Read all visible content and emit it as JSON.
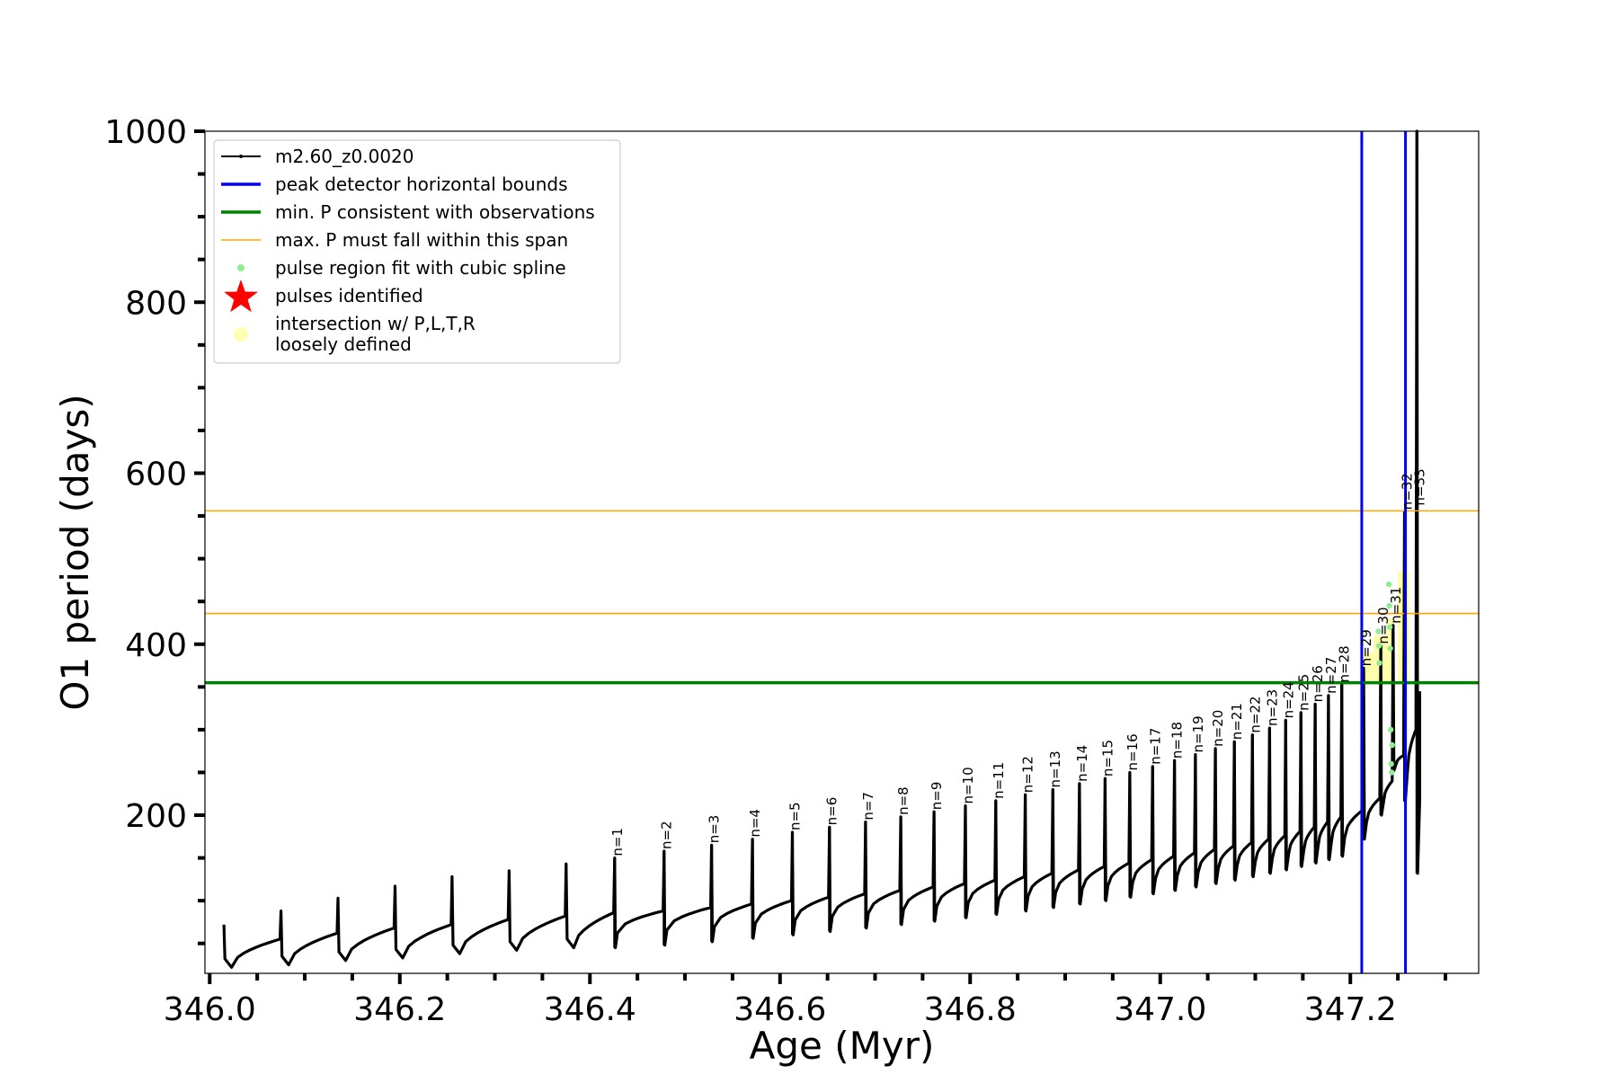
{
  "chart_data": {
    "type": "line",
    "xlabel": "Age (Myr)",
    "ylabel": "O1 period (days)",
    "xlim": [
      345.995,
      347.335
    ],
    "ylim": [
      15,
      1000
    ],
    "xticks": [
      346.0,
      346.2,
      346.4,
      346.6,
      346.8,
      347.0,
      347.2
    ],
    "xtick_labels": [
      "346.0",
      "346.2",
      "346.4",
      "346.6",
      "346.8",
      "347.0",
      "347.2"
    ],
    "yticks": [
      200,
      400,
      600,
      800,
      1000
    ],
    "ytick_labels": [
      "200",
      "400",
      "600",
      "800",
      "1000"
    ],
    "grid": false,
    "legend_position": "top-left",
    "legend": [
      {
        "label": "m2.60_z0.0020",
        "marker": "line-dot",
        "color": "#000000"
      },
      {
        "label": "peak detector horizontal bounds",
        "marker": "line",
        "color": "#0000ff"
      },
      {
        "label": "min. P consistent with observations",
        "marker": "line",
        "color": "#008000"
      },
      {
        "label": "max. P must fall within this span",
        "marker": "thin-line",
        "color": "#ffa500"
      },
      {
        "label": "pulse region fit with cubic spline",
        "marker": "dot",
        "color": "#90ee90"
      },
      {
        "label": "pulses identified",
        "marker": "star",
        "color": "#ff0000"
      },
      {
        "label": "intersection w/ P,L,T,R\nloosely defined",
        "marker": "circle",
        "color": "#ffffb0"
      }
    ],
    "reference_lines": {
      "vertical_blue": [
        347.212,
        347.258
      ],
      "horizontal_green": [
        355
      ],
      "horizontal_orange": [
        556,
        436
      ]
    },
    "series": [
      {
        "name": "m2.60_z0.0020",
        "color": "#000000",
        "pre_pulse_minima": [
          {
            "x": 346.015,
            "trough": 22,
            "spike": 72,
            "plateau": 55
          },
          {
            "x": 346.075,
            "trough": 25,
            "spike": 88,
            "plateau": 62
          },
          {
            "x": 346.135,
            "trough": 30,
            "spike": 103,
            "plateau": 68
          },
          {
            "x": 346.195,
            "trough": 33,
            "spike": 117,
            "plateau": 72
          },
          {
            "x": 346.255,
            "trough": 38,
            "spike": 128,
            "plateau": 78
          },
          {
            "x": 346.315,
            "trough": 42,
            "spike": 135,
            "plateau": 82
          },
          {
            "x": 346.375,
            "trough": 45,
            "spike": 143,
            "plateau": 86
          }
        ],
        "pulses": [
          {
            "n": "n=1",
            "x": 346.426,
            "peak": 150,
            "trough": 45,
            "base": 88
          },
          {
            "n": "n=2",
            "x": 346.478,
            "peak": 158,
            "trough": 48,
            "base": 92
          },
          {
            "n": "n=3",
            "x": 346.528,
            "peak": 165,
            "trough": 52,
            "base": 96
          },
          {
            "n": "n=4",
            "x": 346.571,
            "peak": 172,
            "trough": 56,
            "base": 100
          },
          {
            "n": "n=5",
            "x": 346.613,
            "peak": 180,
            "trough": 60,
            "base": 104
          },
          {
            "n": "n=6",
            "x": 346.652,
            "peak": 186,
            "trough": 64,
            "base": 108
          },
          {
            "n": "n=7",
            "x": 346.69,
            "peak": 192,
            "trough": 68,
            "base": 112
          },
          {
            "n": "n=8",
            "x": 346.727,
            "peak": 198,
            "trough": 72,
            "base": 116
          },
          {
            "n": "n=9",
            "x": 346.762,
            "peak": 204,
            "trough": 76,
            "base": 120
          },
          {
            "n": "n=10",
            "x": 346.795,
            "peak": 211,
            "trough": 80,
            "base": 124
          },
          {
            "n": "n=11",
            "x": 346.827,
            "peak": 217,
            "trough": 84,
            "base": 128
          },
          {
            "n": "n=12",
            "x": 346.858,
            "peak": 224,
            "trough": 88,
            "base": 132
          },
          {
            "n": "n=13",
            "x": 346.887,
            "peak": 230,
            "trough": 92,
            "base": 136
          },
          {
            "n": "n=14",
            "x": 346.915,
            "peak": 237,
            "trough": 96,
            "base": 140
          },
          {
            "n": "n=15",
            "x": 346.942,
            "peak": 243,
            "trough": 100,
            "base": 144
          },
          {
            "n": "n=16",
            "x": 346.968,
            "peak": 250,
            "trough": 104,
            "base": 148
          },
          {
            "n": "n=17",
            "x": 346.992,
            "peak": 257,
            "trough": 108,
            "base": 152
          },
          {
            "n": "n=18",
            "x": 347.015,
            "peak": 264,
            "trough": 112,
            "base": 156
          },
          {
            "n": "n=19",
            "x": 347.037,
            "peak": 271,
            "trough": 116,
            "base": 160
          },
          {
            "n": "n=20",
            "x": 347.058,
            "peak": 278,
            "trough": 120,
            "base": 164
          },
          {
            "n": "n=21",
            "x": 347.078,
            "peak": 286,
            "trough": 124,
            "base": 168
          },
          {
            "n": "n=22",
            "x": 347.097,
            "peak": 294,
            "trough": 128,
            "base": 172
          },
          {
            "n": "n=23",
            "x": 347.115,
            "peak": 302,
            "trough": 132,
            "base": 176
          },
          {
            "n": "n=24",
            "x": 347.132,
            "peak": 311,
            "trough": 136,
            "base": 181
          },
          {
            "n": "n=25",
            "x": 347.148,
            "peak": 320,
            "trough": 140,
            "base": 186
          },
          {
            "n": "n=26",
            "x": 347.163,
            "peak": 330,
            "trough": 144,
            "base": 192
          },
          {
            "n": "n=27",
            "x": 347.177,
            "peak": 340,
            "trough": 148,
            "base": 198
          },
          {
            "n": "n=28",
            "x": 347.191,
            "peak": 353,
            "trough": 152,
            "base": 206
          },
          {
            "n": "n=29",
            "x": 347.214,
            "peak": 372,
            "trough": 172,
            "base": 220
          },
          {
            "n": "n=30",
            "x": 347.232,
            "peak": 398,
            "trough": 200,
            "base": 240
          },
          {
            "n": "n=31",
            "x": 347.245,
            "peak": 422,
            "trough": 252,
            "base": 270
          },
          {
            "n": "n=32",
            "x": 347.257,
            "peak": 555,
            "trough": 216,
            "base": 300
          },
          {
            "n": "n=33",
            "x": 347.27,
            "peak": 1000,
            "trough": 132,
            "base": 345
          }
        ]
      }
    ],
    "spline_points": [
      {
        "x": 347.2295,
        "y": 415
      },
      {
        "x": 347.23,
        "y": 398
      },
      {
        "x": 347.2305,
        "y": 378
      },
      {
        "x": 347.2405,
        "y": 470
      },
      {
        "x": 347.241,
        "y": 445
      },
      {
        "x": 347.2415,
        "y": 420
      },
      {
        "x": 347.242,
        "y": 395
      },
      {
        "x": 347.2425,
        "y": 300
      },
      {
        "x": 347.243,
        "y": 260
      },
      {
        "x": 347.2435,
        "y": 250
      },
      {
        "x": 347.244,
        "y": 282
      }
    ],
    "intersection_regions": [
      {
        "x0": 347.212,
        "x1": 347.224,
        "y0": 355,
        "y1": 390
      },
      {
        "x0": 347.224,
        "x1": 347.238,
        "y0": 355,
        "y1": 410
      },
      {
        "x0": 347.238,
        "x1": 347.246,
        "y0": 355,
        "y1": 430
      },
      {
        "x0": 347.25,
        "x1": 347.262,
        "y0": 355,
        "y1": 485
      }
    ]
  }
}
